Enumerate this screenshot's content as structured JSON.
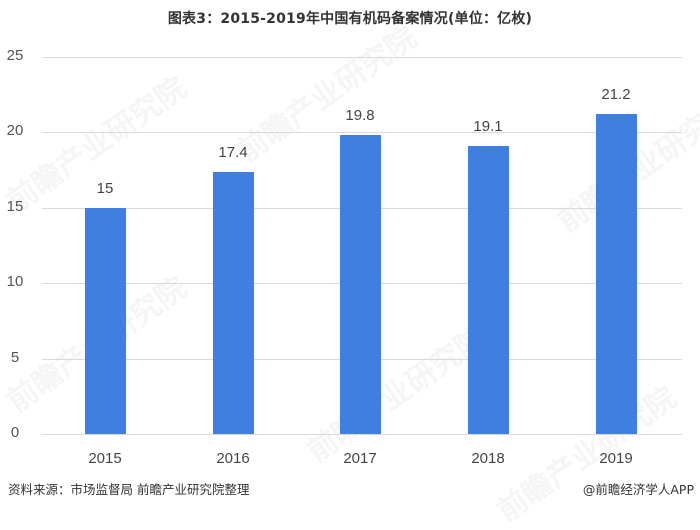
{
  "title": "图表3：2015-2019年中国有机码备案情况(单位：亿枚)",
  "source": "资料来源：市场监督局 前瞻产业研究院整理",
  "credit": "@前瞻经济学人APP",
  "watermark": "前瞻产业研究院",
  "colors": {
    "bar": "#3f7fe0",
    "grid": "#d9d9d9",
    "text": "#333333"
  },
  "y_ticks": [
    "0",
    "5",
    "10",
    "15",
    "20",
    "25"
  ],
  "bars": [
    {
      "year": "2015",
      "value": 15,
      "label": "15"
    },
    {
      "year": "2016",
      "value": 17.4,
      "label": "17.4"
    },
    {
      "year": "2017",
      "value": 19.8,
      "label": "19.8"
    },
    {
      "year": "2018",
      "value": 19.1,
      "label": "19.1"
    },
    {
      "year": "2019",
      "value": 21.2,
      "label": "21.2"
    }
  ],
  "chart_data": {
    "type": "bar",
    "title": "图表3：2015-2019年中国有机码备案情况(单位：亿枚)",
    "categories": [
      "2015",
      "2016",
      "2017",
      "2018",
      "2019"
    ],
    "values": [
      15,
      17.4,
      19.8,
      19.1,
      21.2
    ],
    "xlabel": "",
    "ylabel": "",
    "unit": "亿枚",
    "ylim": [
      0,
      25
    ],
    "yticks": [
      0,
      5,
      10,
      15,
      20,
      25
    ],
    "grid": true,
    "legend": null,
    "data_labels": true
  }
}
